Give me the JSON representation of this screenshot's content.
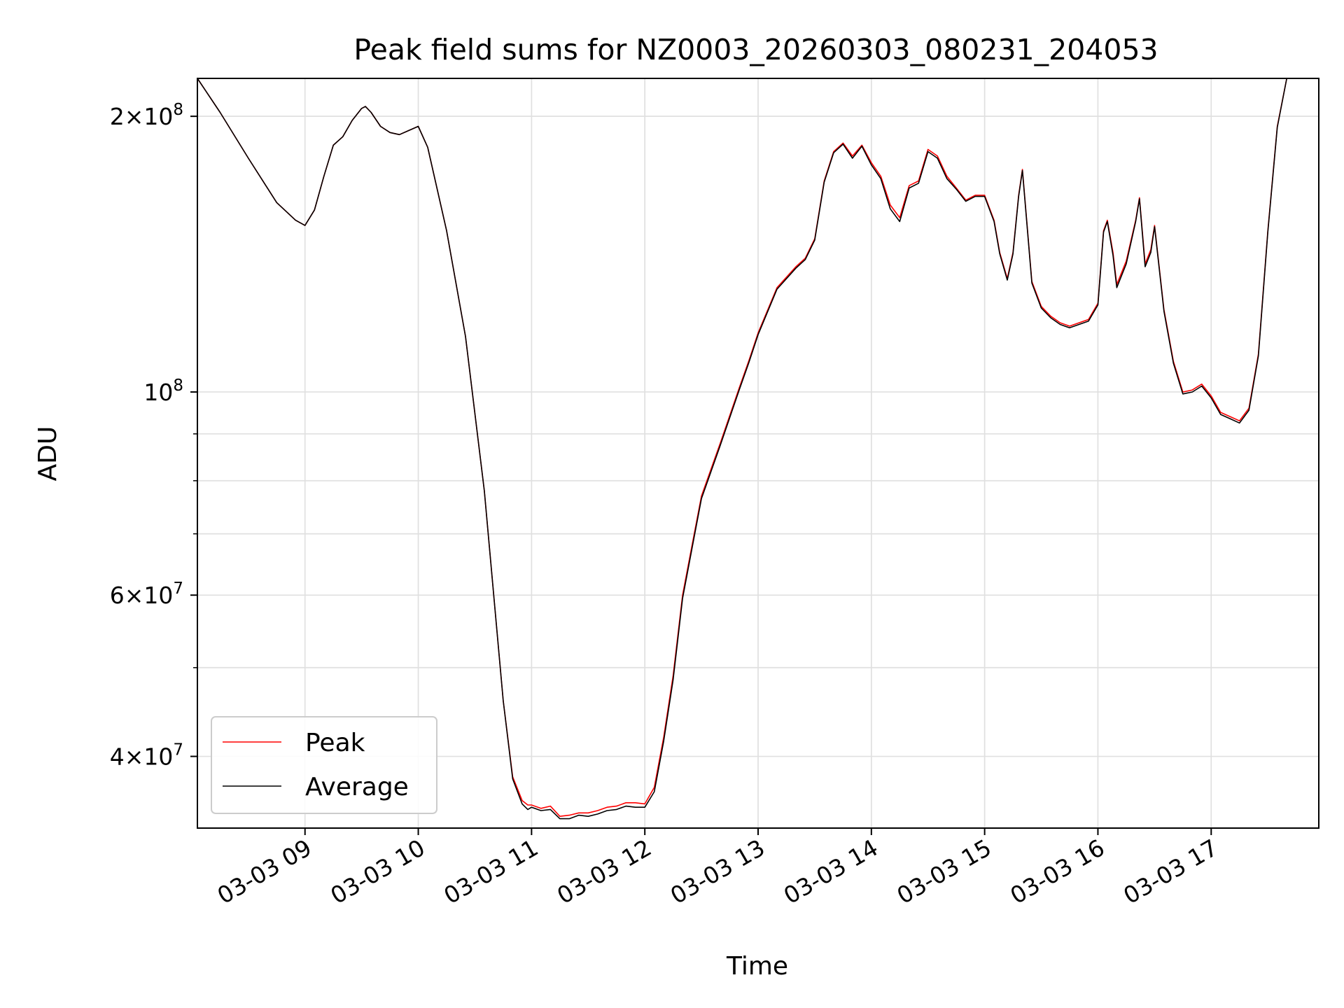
{
  "chart_data": {
    "type": "line",
    "title": "Peak field sums for NZ0003_20260303_080231_204053",
    "xlabel": "Time",
    "ylabel": "ADU",
    "y_scale": "log",
    "grid": true,
    "legend": "lower-left",
    "xlim": [
      "03-03 08:03",
      "03-03 17:57"
    ],
    "ylim": [
      33400000,
      220000000
    ],
    "x_ticks": [
      {
        "value": "03-03 09:00",
        "label": "03-03 09"
      },
      {
        "value": "03-03 10:00",
        "label": "03-03 10"
      },
      {
        "value": "03-03 11:00",
        "label": "03-03 11"
      },
      {
        "value": "03-03 12:00",
        "label": "03-03 12"
      },
      {
        "value": "03-03 13:00",
        "label": "03-03 13"
      },
      {
        "value": "03-03 14:00",
        "label": "03-03 14"
      },
      {
        "value": "03-03 15:00",
        "label": "03-03 15"
      },
      {
        "value": "03-03 16:00",
        "label": "03-03 16"
      },
      {
        "value": "03-03 17:00",
        "label": "03-03 17"
      }
    ],
    "y_major_ticks": [
      {
        "value": 40000000,
        "mantissa": "4",
        "exponent": "7"
      },
      {
        "value": 60000000,
        "mantissa": "6",
        "exponent": "7"
      },
      {
        "value": 100000000,
        "mantissa": "",
        "exponent": "8"
      },
      {
        "value": 200000000,
        "mantissa": "2",
        "exponent": "8"
      }
    ],
    "y_minor_gridlines": [
      50000000,
      70000000,
      80000000,
      90000000
    ],
    "x": [
      "08:03",
      "08:15",
      "08:30",
      "08:45",
      "08:55",
      "09:00",
      "09:05",
      "09:10",
      "09:15",
      "09:20",
      "09:25",
      "09:30",
      "09:32",
      "09:35",
      "09:40",
      "09:45",
      "09:50",
      "09:55",
      "10:00",
      "10:05",
      "10:15",
      "10:25",
      "10:35",
      "10:45",
      "10:50",
      "10:55",
      "10:58",
      "11:00",
      "11:05",
      "11:10",
      "11:15",
      "11:20",
      "11:25",
      "11:30",
      "11:35",
      "11:40",
      "11:45",
      "11:50",
      "11:55",
      "12:00",
      "12:05",
      "12:10",
      "12:15",
      "12:20",
      "12:25",
      "12:30",
      "12:40",
      "12:50",
      "12:55",
      "13:00",
      "13:10",
      "13:20",
      "13:25",
      "13:30",
      "13:35",
      "13:40",
      "13:45",
      "13:50",
      "13:55",
      "14:00",
      "14:05",
      "14:10",
      "14:15",
      "14:20",
      "14:25",
      "14:30",
      "14:35",
      "14:40",
      "14:45",
      "14:50",
      "14:55",
      "15:00",
      "15:05",
      "15:08",
      "15:12",
      "15:15",
      "15:18",
      "15:20",
      "15:25",
      "15:30",
      "15:35",
      "15:40",
      "15:45",
      "15:50",
      "15:55",
      "16:00",
      "16:03",
      "16:05",
      "16:08",
      "16:10",
      "16:15",
      "16:20",
      "16:22",
      "16:25",
      "16:28",
      "16:30",
      "16:35",
      "16:40",
      "16:45",
      "16:50",
      "16:55",
      "17:00",
      "17:05",
      "17:10",
      "17:15",
      "17:20",
      "17:25",
      "17:30",
      "17:35",
      "17:40",
      "17:45",
      "17:57"
    ],
    "series": [
      {
        "name": "Peak",
        "color": "#ff0000",
        "values": [
          220000000,
          202000000,
          180000000,
          161000000,
          154000000,
          152000000,
          158000000,
          172000000,
          186000000,
          190000000,
          198000000,
          204000000,
          205000000,
          202000000,
          195000000,
          192000000,
          191000000,
          193000000,
          195000000,
          185000000,
          150000000,
          115000000,
          78000000,
          46000000,
          38000000,
          35800000,
          35400000,
          35400000,
          35100000,
          35300000,
          34400000,
          34500000,
          34700000,
          34700000,
          34900000,
          35200000,
          35300000,
          35600000,
          35600000,
          35500000,
          37000000,
          42000000,
          49000000,
          60000000,
          68000000,
          77000000,
          88000000,
          101000000,
          108000000,
          116000000,
          130000000,
          137000000,
          140000000,
          147000000,
          170000000,
          183000000,
          187000000,
          181000000,
          186000000,
          178000000,
          172000000,
          160000000,
          155000000,
          168000000,
          170000000,
          184000000,
          181000000,
          172000000,
          167000000,
          162000000,
          164000000,
          164000000,
          154000000,
          142000000,
          133000000,
          142000000,
          164000000,
          175000000,
          132000000,
          124000000,
          121000000,
          119000000,
          118000000,
          119000000,
          120000000,
          125000000,
          150000000,
          154000000,
          142000000,
          131000000,
          139000000,
          154000000,
          163000000,
          138000000,
          143000000,
          152000000,
          123000000,
          108000000,
          100000000,
          100500000,
          102000000,
          99000000,
          95000000,
          94000000,
          93000000,
          96000000,
          110000000,
          150000000,
          195000000,
          220000000,
          220000000,
          220000000
        ]
      },
      {
        "name": "Average",
        "color": "#000000",
        "values": [
          220000000,
          202000000,
          180000000,
          161000000,
          154000000,
          152000000,
          158000000,
          172000000,
          186000000,
          190000000,
          198000000,
          204000000,
          205000000,
          202000000,
          195000000,
          192000000,
          191000000,
          193000000,
          195000000,
          185000000,
          150000000,
          115000000,
          78000000,
          46000000,
          37800000,
          35500000,
          35000000,
          35200000,
          34900000,
          35000000,
          34200000,
          34200000,
          34500000,
          34400000,
          34600000,
          34900000,
          35000000,
          35300000,
          35200000,
          35200000,
          36600000,
          41600000,
          48500000,
          59500000,
          67500000,
          76500000,
          87500000,
          100500000,
          107500000,
          115500000,
          129500000,
          136500000,
          139500000,
          146500000,
          169500000,
          182500000,
          186500000,
          180000000,
          185500000,
          177000000,
          171000000,
          158500000,
          153500000,
          167000000,
          169000000,
          183000000,
          180000000,
          171000000,
          166500000,
          161500000,
          163500000,
          163500000,
          153500000,
          141500000,
          132500000,
          141500000,
          163500000,
          174500000,
          131500000,
          123500000,
          120500000,
          118500000,
          117500000,
          118500000,
          119500000,
          124500000,
          149500000,
          153500000,
          141000000,
          130000000,
          138000000,
          153500000,
          162500000,
          137000000,
          142000000,
          151500000,
          122500000,
          107500000,
          99500000,
          100000000,
          101500000,
          98500000,
          94500000,
          93500000,
          92500000,
          95500000,
          109500000,
          149500000,
          194500000,
          220000000,
          220000000,
          220000000
        ]
      }
    ]
  }
}
